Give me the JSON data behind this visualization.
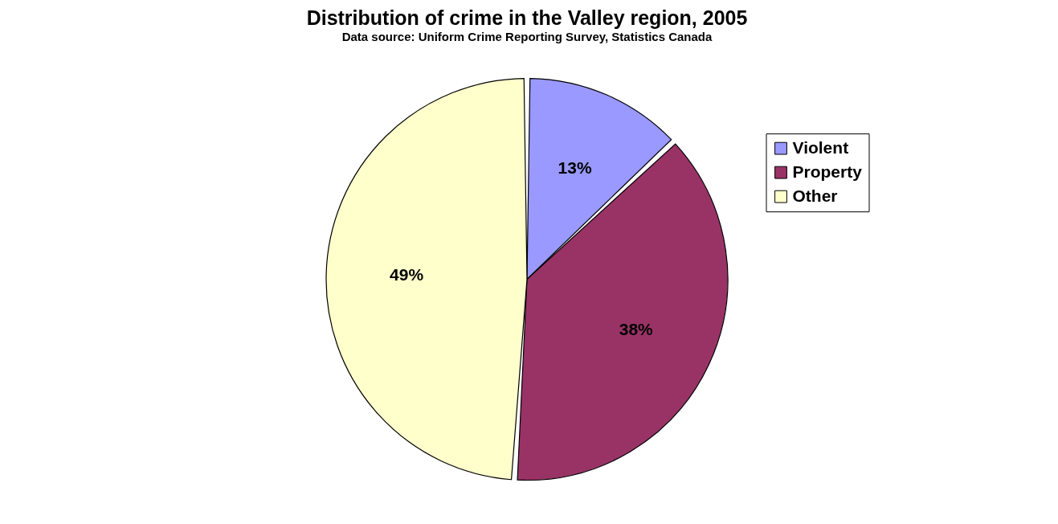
{
  "chart_data": {
    "type": "pie",
    "title": "Distribution of crime in the Valley region, 2005",
    "subtitle": "Data source:  Uniform Crime Reporting Survey, Statistics Canada",
    "categories": [
      "Violent",
      "Property",
      "Other"
    ],
    "values": [
      13,
      38,
      49
    ],
    "value_labels": [
      "13%",
      "38%",
      "49%"
    ],
    "colors": [
      "#9999ff",
      "#993366",
      "#ffffcc"
    ],
    "legend": "right"
  }
}
